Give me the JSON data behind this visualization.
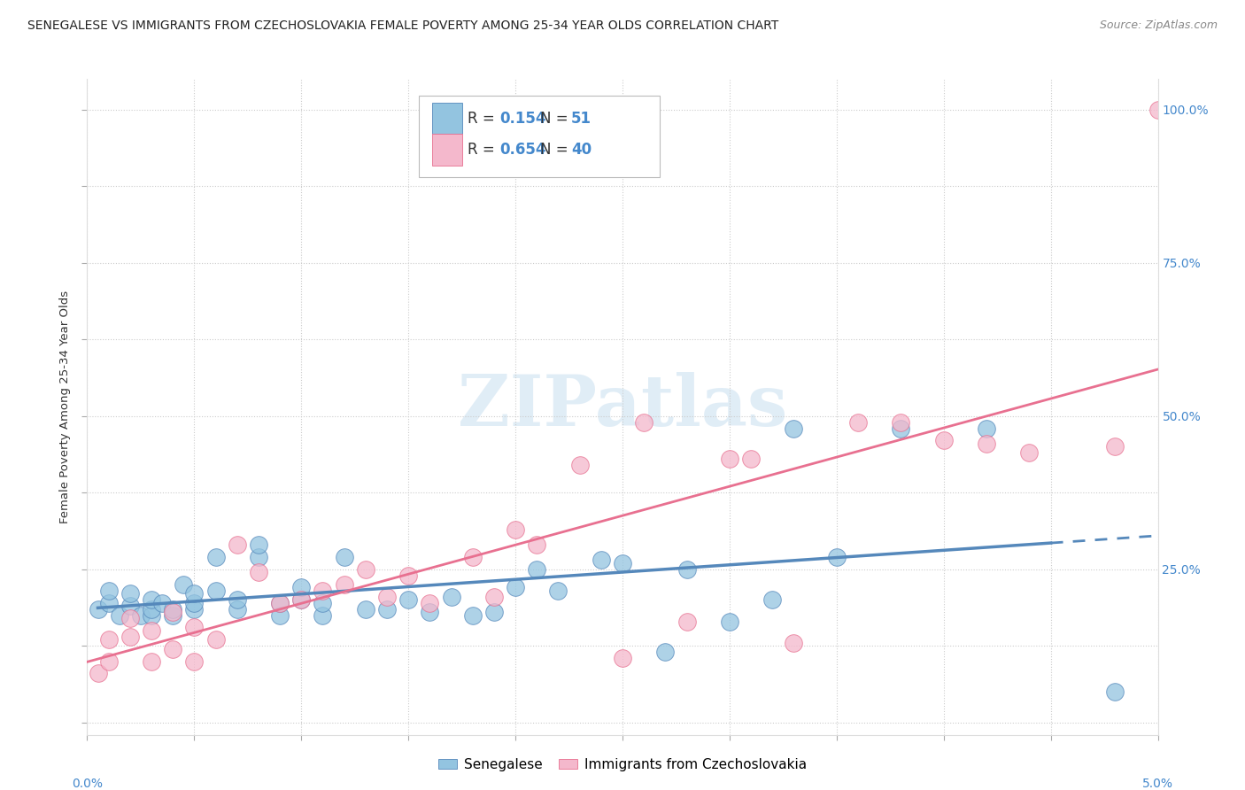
{
  "title": "SENEGALESE VS IMMIGRANTS FROM CZECHOSLOVAKIA FEMALE POVERTY AMONG 25-34 YEAR OLDS CORRELATION CHART",
  "source": "Source: ZipAtlas.com",
  "ylabel": "Female Poverty Among 25-34 Year Olds",
  "right_yticks": [
    "100.0%",
    "75.0%",
    "50.0%",
    "25.0%"
  ],
  "right_ytick_vals": [
    1.0,
    0.75,
    0.5,
    0.25
  ],
  "watermark": "ZIPatlas",
  "legend_label1": "Senegalese",
  "legend_label2": "Immigrants from Czechoslovakia",
  "R1": "0.154",
  "N1": "51",
  "R2": "0.654",
  "N2": "40",
  "color_blue": "#93C4E0",
  "color_pink": "#F4B8CC",
  "color_blue_line": "#5588BB",
  "color_pink_line": "#E87090",
  "color_blue_text": "#4488CC",
  "blue_scatter_x": [
    0.0005,
    0.001,
    0.001,
    0.0015,
    0.002,
    0.002,
    0.0025,
    0.003,
    0.003,
    0.003,
    0.0035,
    0.004,
    0.004,
    0.0045,
    0.005,
    0.005,
    0.005,
    0.006,
    0.006,
    0.007,
    0.007,
    0.008,
    0.008,
    0.009,
    0.009,
    0.01,
    0.01,
    0.011,
    0.011,
    0.012,
    0.013,
    0.014,
    0.015,
    0.016,
    0.017,
    0.018,
    0.019,
    0.02,
    0.021,
    0.022,
    0.024,
    0.025,
    0.027,
    0.028,
    0.03,
    0.032,
    0.033,
    0.035,
    0.038,
    0.042,
    0.048
  ],
  "blue_scatter_y": [
    0.185,
    0.195,
    0.215,
    0.175,
    0.19,
    0.21,
    0.175,
    0.175,
    0.185,
    0.2,
    0.195,
    0.175,
    0.185,
    0.225,
    0.185,
    0.195,
    0.21,
    0.215,
    0.27,
    0.185,
    0.2,
    0.27,
    0.29,
    0.175,
    0.195,
    0.2,
    0.22,
    0.175,
    0.195,
    0.27,
    0.185,
    0.185,
    0.2,
    0.18,
    0.205,
    0.175,
    0.18,
    0.22,
    0.25,
    0.215,
    0.265,
    0.26,
    0.115,
    0.25,
    0.165,
    0.2,
    0.48,
    0.27,
    0.48,
    0.48,
    0.05
  ],
  "pink_scatter_x": [
    0.0005,
    0.001,
    0.001,
    0.002,
    0.002,
    0.003,
    0.003,
    0.004,
    0.004,
    0.005,
    0.005,
    0.006,
    0.007,
    0.008,
    0.009,
    0.01,
    0.011,
    0.012,
    0.013,
    0.014,
    0.015,
    0.016,
    0.018,
    0.019,
    0.02,
    0.021,
    0.023,
    0.025,
    0.026,
    0.028,
    0.03,
    0.031,
    0.033,
    0.036,
    0.038,
    0.04,
    0.042,
    0.044,
    0.048,
    0.05
  ],
  "pink_scatter_y": [
    0.08,
    0.1,
    0.135,
    0.14,
    0.17,
    0.1,
    0.15,
    0.12,
    0.18,
    0.1,
    0.155,
    0.135,
    0.29,
    0.245,
    0.195,
    0.2,
    0.215,
    0.225,
    0.25,
    0.205,
    0.24,
    0.195,
    0.27,
    0.205,
    0.315,
    0.29,
    0.42,
    0.105,
    0.49,
    0.165,
    0.43,
    0.43,
    0.13,
    0.49,
    0.49,
    0.46,
    0.455,
    0.44,
    0.45,
    1.0
  ],
  "xlim": [
    0.0,
    0.05
  ],
  "ylim": [
    -0.02,
    1.05
  ],
  "title_fontsize": 10,
  "source_fontsize": 9,
  "axis_fontsize": 9,
  "tick_fontsize": 9
}
